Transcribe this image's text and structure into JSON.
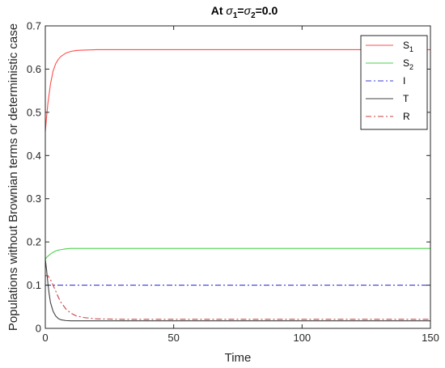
{
  "chart_data": {
    "type": "line",
    "title": {
      "prefix": "At ",
      "sym": "σ",
      "sub1": "1",
      "eq": "=",
      "sub2": "2",
      "suffix": "=0.0"
    },
    "xlabel": "Time",
    "ylabel": "Populations without Brownian terms or deterministic case",
    "xlim": [
      0,
      150
    ],
    "ylim": [
      0,
      0.7
    ],
    "xticks": [
      0,
      50,
      100,
      150
    ],
    "yticks": [
      0,
      0.1,
      0.2,
      0.3,
      0.4,
      0.5,
      0.6,
      0.7
    ],
    "xtick_labels": [
      "0",
      "50",
      "100",
      "150"
    ],
    "ytick_labels": [
      "0",
      "0.1",
      "0.2",
      "0.3",
      "0.4",
      "0.5",
      "0.6",
      "0.7"
    ],
    "grid": false,
    "legend_position": "top-right",
    "series": [
      {
        "name": "S",
        "name_sub": "1",
        "color": "#ff4d4d",
        "dash": "solid",
        "x": [
          0,
          0.5,
          1,
          2,
          3,
          4,
          5,
          6,
          8,
          10,
          12,
          15,
          20,
          30,
          50,
          100,
          150
        ],
        "y": [
          0.455,
          0.49,
          0.52,
          0.565,
          0.595,
          0.612,
          0.622,
          0.629,
          0.637,
          0.641,
          0.643,
          0.644,
          0.645,
          0.645,
          0.645,
          0.645,
          0.645
        ]
      },
      {
        "name": "S",
        "name_sub": "2",
        "color": "#4dd24d",
        "dash": "solid",
        "x": [
          0,
          0.5,
          1,
          2,
          3,
          4,
          5,
          6,
          8,
          10,
          15,
          20,
          30,
          50,
          100,
          150
        ],
        "y": [
          0.16,
          0.164,
          0.167,
          0.172,
          0.176,
          0.179,
          0.181,
          0.182,
          0.184,
          0.185,
          0.185,
          0.185,
          0.185,
          0.185,
          0.185,
          0.185
        ]
      },
      {
        "name": "I",
        "name_sub": "",
        "color": "#3a3ad4",
        "dash": "dashdot",
        "x": [
          0,
          150
        ],
        "y": [
          0.1,
          0.1
        ]
      },
      {
        "name": "T",
        "name_sub": "",
        "color": "#404040",
        "dash": "solid",
        "x": [
          0,
          0.5,
          1,
          1.5,
          2,
          3,
          4,
          5,
          6,
          8,
          10,
          15,
          20,
          50,
          100,
          150
        ],
        "y": [
          0.16,
          0.135,
          0.105,
          0.08,
          0.06,
          0.04,
          0.029,
          0.023,
          0.02,
          0.018,
          0.0175,
          0.0175,
          0.0175,
          0.0175,
          0.0175,
          0.0175
        ]
      },
      {
        "name": "R",
        "name_sub": "",
        "color": "#c84040",
        "dash": "dashdot",
        "x": [
          0,
          0.5,
          1,
          2,
          3,
          4,
          5,
          6,
          8,
          10,
          12,
          15,
          20,
          25,
          30,
          50,
          100,
          150
        ],
        "y": [
          0.12,
          0.123,
          0.122,
          0.113,
          0.1,
          0.087,
          0.073,
          0.061,
          0.045,
          0.035,
          0.029,
          0.025,
          0.022,
          0.0215,
          0.021,
          0.021,
          0.021,
          0.021
        ]
      }
    ]
  }
}
